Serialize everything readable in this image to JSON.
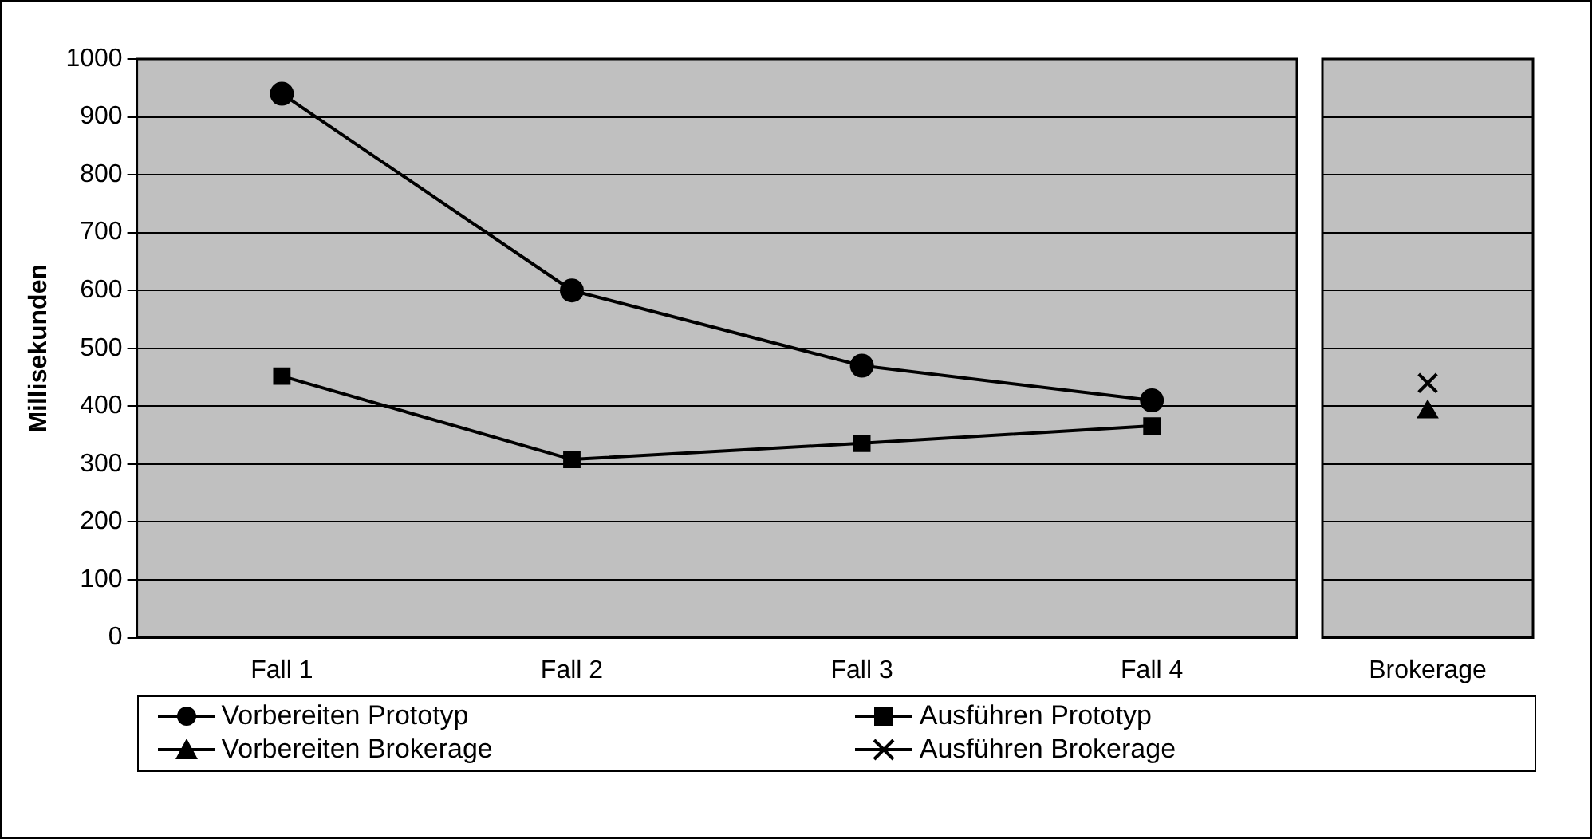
{
  "chart_data": [
    {
      "type": "line",
      "ylabel": "Millisekunden",
      "categories": [
        "Fall 1",
        "Fall 2",
        "Fall 3",
        "Fall 4"
      ],
      "series": [
        {
          "name": "Vorbereiten Prototyp",
          "color": "#000000",
          "marker": "circle",
          "values": [
            940,
            600,
            470,
            410
          ]
        },
        {
          "name": "Ausführen Prototyp",
          "color": "#000000",
          "marker": "square",
          "values": [
            452,
            308,
            336,
            366
          ]
        }
      ],
      "ylim": [
        0,
        1000
      ],
      "yticks": [
        0,
        100,
        200,
        300,
        400,
        500,
        600,
        700,
        800,
        900,
        1000
      ],
      "grid": "y",
      "legend": "bottom",
      "line_style": "solid"
    },
    {
      "type": "line",
      "categories": [
        "Brokerage"
      ],
      "series": [
        {
          "name": "Vorbereiten Brokerage",
          "color": "#000000",
          "marker": "triangle",
          "values": [
            390
          ]
        },
        {
          "name": "Ausführen Brokerage",
          "color": "#000000",
          "marker": "cross",
          "values": [
            440
          ]
        }
      ],
      "ylim": [
        0,
        1000
      ],
      "yticks": [
        0,
        100,
        200,
        300,
        400,
        500,
        600,
        700,
        800,
        900,
        1000
      ],
      "grid": "y",
      "legend": "bottom",
      "tick_labels": "x",
      "line_style": "solid"
    }
  ]
}
